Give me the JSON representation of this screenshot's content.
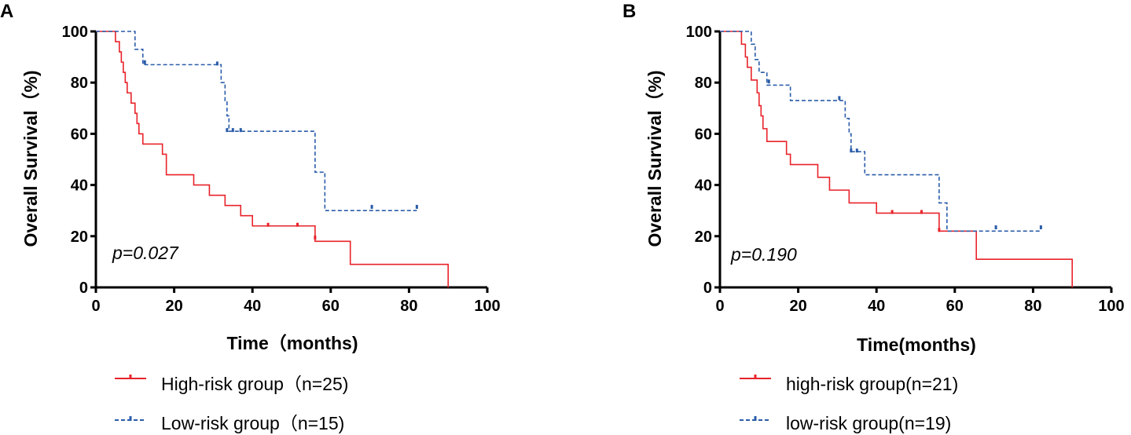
{
  "colors": {
    "high": "#e8232a",
    "low": "#2a5caa",
    "axis": "#000000"
  },
  "chart_data": [
    {
      "type": "line",
      "subtype": "kaplan-meier",
      "panel": "A",
      "title": "",
      "xlabel": "Time（months)",
      "ylabel": "Overall Survival（%)",
      "xlim": [
        0,
        100
      ],
      "ylim": [
        0,
        100
      ],
      "xticks": [
        "0",
        "20",
        "40",
        "60",
        "80",
        "100"
      ],
      "yticks": [
        "0",
        "20",
        "40",
        "60",
        "80",
        "100"
      ],
      "annotation": "p=0.027",
      "series": [
        {
          "name": "High-risk group（n=25)",
          "key": "high",
          "steps": [
            [
              0,
              100
            ],
            [
              4,
              100
            ],
            [
              5,
              96
            ],
            [
              6,
              92
            ],
            [
              6.5,
              88
            ],
            [
              7,
              84
            ],
            [
              7.5,
              80
            ],
            [
              8,
              76
            ],
            [
              9,
              72
            ],
            [
              10,
              68
            ],
            [
              10.5,
              64
            ],
            [
              11,
              60
            ],
            [
              12,
              56
            ],
            [
              17,
              52
            ],
            [
              18,
              44
            ],
            [
              25,
              40
            ],
            [
              29,
              36
            ],
            [
              33,
              32
            ],
            [
              37,
              28
            ],
            [
              40,
              24
            ],
            [
              56,
              18
            ],
            [
              65,
              9
            ],
            [
              90,
              9
            ],
            [
              90,
              0
            ]
          ],
          "censored": [
            [
              44,
              24
            ],
            [
              51.5,
              24
            ],
            [
              56,
              19
            ]
          ]
        },
        {
          "name": "Low-risk group（n=15)",
          "key": "low",
          "steps": [
            [
              0,
              100
            ],
            [
              9,
              100
            ],
            [
              10,
              93
            ],
            [
              12,
              87
            ],
            [
              31,
              87
            ],
            [
              32,
              80
            ],
            [
              33,
              73
            ],
            [
              33.5,
              67
            ],
            [
              34,
              61
            ],
            [
              55,
              61
            ],
            [
              56,
              45
            ],
            [
              58,
              45
            ],
            [
              58.5,
              30
            ],
            [
              82,
              30
            ]
          ],
          "censored": [
            [
              12.5,
              87.5
            ],
            [
              31,
              87
            ],
            [
              33.5,
              61
            ],
            [
              35,
              61
            ],
            [
              37,
              61
            ],
            [
              70.5,
              31
            ],
            [
              82,
              31
            ]
          ]
        }
      ]
    },
    {
      "type": "line",
      "subtype": "kaplan-meier",
      "panel": "B",
      "title": "",
      "xlabel": "Time(months)",
      "ylabel": "Overall Survival（%)",
      "xlim": [
        0,
        100
      ],
      "ylim": [
        0,
        100
      ],
      "xticks": [
        "0",
        "20",
        "40",
        "60",
        "80",
        "100"
      ],
      "yticks": [
        "0",
        "20",
        "40",
        "60",
        "80",
        "100"
      ],
      "annotation": "p=0.190",
      "series": [
        {
          "name": "high-risk group(n=21)",
          "key": "high",
          "steps": [
            [
              0,
              100
            ],
            [
              5,
              100
            ],
            [
              5.5,
              95
            ],
            [
              6.5,
              90
            ],
            [
              7,
              86
            ],
            [
              8,
              81
            ],
            [
              9.5,
              76
            ],
            [
              10,
              71
            ],
            [
              10.5,
              67
            ],
            [
              11,
              62
            ],
            [
              12,
              57
            ],
            [
              17,
              52
            ],
            [
              18,
              48
            ],
            [
              25,
              43
            ],
            [
              28,
              38
            ],
            [
              33,
              33
            ],
            [
              40,
              29
            ],
            [
              56,
              22
            ],
            [
              65.5,
              11
            ],
            [
              90,
              11
            ],
            [
              90,
              0
            ]
          ],
          "censored": [
            [
              44,
              29
            ],
            [
              51.5,
              29
            ],
            [
              56,
              22
            ]
          ]
        },
        {
          "name": "low-risk group(n=19)",
          "key": "low",
          "steps": [
            [
              0,
              100
            ],
            [
              7,
              100
            ],
            [
              8,
              95
            ],
            [
              9,
              89
            ],
            [
              10,
              84
            ],
            [
              12,
              79
            ],
            [
              18,
              73
            ],
            [
              31,
              73
            ],
            [
              32,
              66
            ],
            [
              33,
              60
            ],
            [
              33.5,
              53
            ],
            [
              36,
              53
            ],
            [
              37,
              44
            ],
            [
              55,
              44
            ],
            [
              56,
              33
            ],
            [
              57.5,
              33
            ],
            [
              58,
              22
            ],
            [
              82,
              22
            ]
          ],
          "censored": [
            [
              12.5,
              80
            ],
            [
              30.5,
              73.5
            ],
            [
              33.5,
              53
            ],
            [
              35,
              53
            ],
            [
              70.5,
              23
            ],
            [
              82,
              23
            ]
          ]
        }
      ]
    }
  ]
}
